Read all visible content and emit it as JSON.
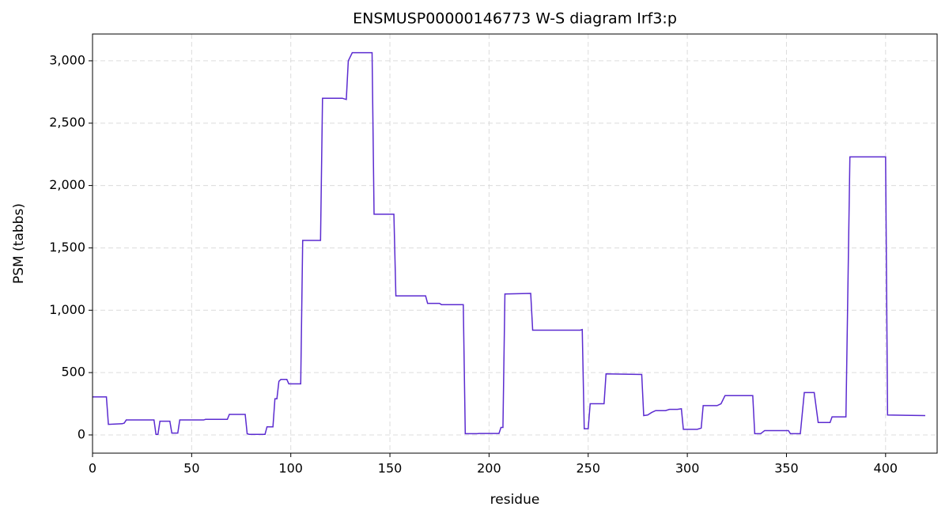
{
  "chart_data": {
    "type": "line",
    "title": "ENSMUSP00000146773 W-S diagram Irf3:p",
    "x_label": "residue",
    "y_label": "PSM (tabbs)",
    "color": "#5b2bd0",
    "grid": true,
    "xlim": [
      0,
      426
    ],
    "ylim": [
      -146,
      3215
    ],
    "xticks": [
      0,
      50,
      100,
      150,
      200,
      250,
      300,
      350,
      400
    ],
    "yticks": [
      0,
      500,
      {
        "value": 1000,
        "label": "1,000"
      },
      {
        "value": 1500,
        "label": "1,500"
      },
      {
        "value": 2000,
        "label": "2,000"
      },
      {
        "value": 2500,
        "label": "2,500"
      },
      {
        "value": 3000,
        "label": "3,000"
      }
    ],
    "x": [
      0,
      7,
      8,
      15,
      16,
      17,
      31,
      32,
      33,
      34,
      39,
      40,
      43,
      44,
      56,
      57,
      68,
      69,
      77,
      78,
      79,
      87,
      88,
      91,
      92,
      93,
      94,
      95,
      98,
      99,
      105,
      106,
      115,
      116,
      126,
      128,
      129,
      131,
      141,
      142,
      152,
      153,
      168,
      169,
      175,
      176,
      187,
      188,
      194,
      195,
      205,
      206,
      207,
      208,
      221,
      222,
      246,
      247,
      248,
      250,
      251,
      258,
      259,
      277,
      278,
      280,
      282,
      284,
      289,
      291,
      295,
      297,
      298,
      305,
      307,
      308,
      315,
      317,
      319,
      333,
      334,
      337,
      339,
      351,
      352,
      357,
      359,
      364,
      366,
      372,
      373,
      380,
      382,
      400,
      401,
      420
    ],
    "values": [
      305,
      305,
      85,
      90,
      95,
      120,
      120,
      5,
      5,
      110,
      110,
      15,
      15,
      120,
      120,
      125,
      125,
      165,
      165,
      10,
      5,
      5,
      65,
      65,
      290,
      290,
      430,
      445,
      445,
      410,
      410,
      1560,
      1560,
      2700,
      2700,
      2690,
      3000,
      3065,
      3065,
      1770,
      1770,
      1115,
      1115,
      1055,
      1055,
      1045,
      1045,
      10,
      10,
      12,
      12,
      60,
      60,
      1130,
      1135,
      840,
      840,
      845,
      50,
      50,
      250,
      250,
      490,
      485,
      155,
      160,
      180,
      195,
      195,
      205,
      205,
      210,
      45,
      45,
      55,
      235,
      235,
      250,
      315,
      315,
      10,
      10,
      35,
      35,
      10,
      10,
      340,
      340,
      100,
      100,
      145,
      145,
      2230,
      2230,
      160,
      155
    ]
  }
}
